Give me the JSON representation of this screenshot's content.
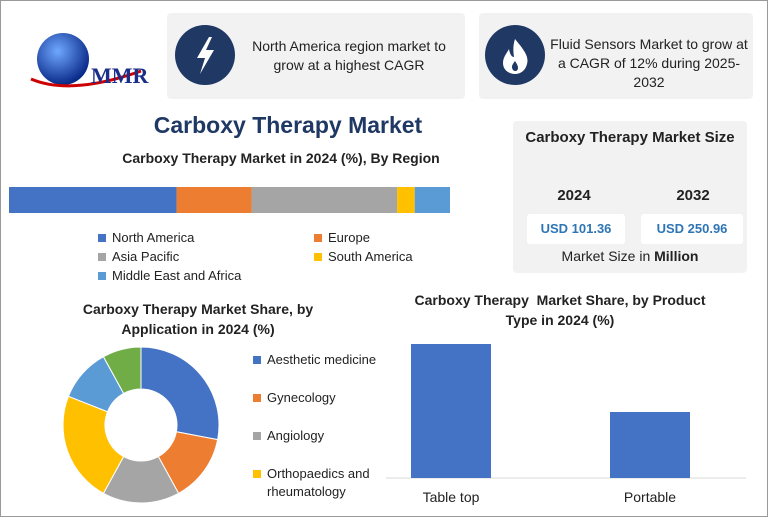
{
  "logo": {
    "text": "MMR"
  },
  "callouts": [
    {
      "text": "North America region market to grow at a highest CAGR"
    },
    {
      "text": "Fluid Sensors Market to grow at a CAGR of 12% during 2025-2032"
    }
  ],
  "main_title": "Carboxy Therapy Market",
  "size_panel": {
    "title": "Carboxy Therapy Market Size",
    "years": [
      "2024",
      "2032"
    ],
    "values": [
      "USD 101.36",
      "USD 250.96"
    ],
    "note_prefix": "Market Size in",
    "note_unit": "Million"
  },
  "chart_data": [
    {
      "type": "stacked_bar",
      "title": "Carboxy Therapy Market in 2024 (%), By Region",
      "series": [
        {
          "name": "North America",
          "color": "#4472c4",
          "values": [
            38
          ]
        },
        {
          "name": "Europe",
          "color": "#ed7d31",
          "values": [
            17
          ]
        },
        {
          "name": "Asia Pacific",
          "color": "#a5a5a5",
          "values": [
            33
          ]
        },
        {
          "name": "South America",
          "color": "#ffc000",
          "values": [
            4
          ]
        },
        {
          "name": "Middle East and Africa",
          "color": "#5b9bd5",
          "values": [
            8
          ]
        }
      ]
    },
    {
      "type": "donut",
      "title": "Carboxy Therapy Market Share, by Application in 2024 (%)",
      "categories": [
        "Aesthetic medicine",
        "Gynecology",
        "Angiology",
        "Orthopaedics and rheumatology",
        null,
        null
      ],
      "values": [
        28,
        14,
        16,
        23,
        11,
        8
      ],
      "colors": [
        "#4472c4",
        "#ed7d31",
        "#a5a5a5",
        "#ffc000",
        "#5b9bd5",
        "#70ad47"
      ]
    },
    {
      "type": "bar",
      "title": "Carboxy Therapy  Market Share, by Product Type in 2024 (%)",
      "categories": [
        "Table top",
        "Portable"
      ],
      "values": [
        67,
        33
      ],
      "color": "#4472c4"
    }
  ]
}
